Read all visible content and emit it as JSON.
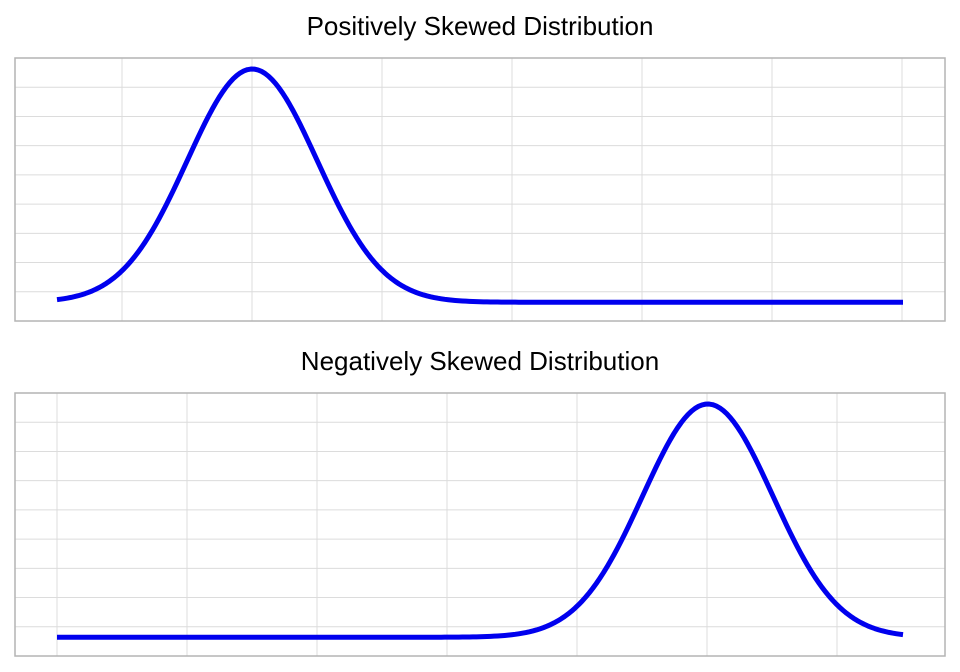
{
  "chart_data": [
    {
      "type": "line",
      "title": "Positively Skewed Distribution",
      "xlabel": "",
      "ylabel": "",
      "grid": true,
      "line_color": "#0000ee",
      "grid_color": "#dcdcdc",
      "border_color": "#b4b4b4",
      "x_range": [
        0,
        13
      ],
      "y_range": [
        0,
        1
      ],
      "series": [
        {
          "peak_x": 3,
          "spread": 1,
          "baseline": 0.02,
          "x": [
            0,
            0.5,
            1,
            1.5,
            2,
            2.5,
            3,
            3.5,
            4,
            4.5,
            5,
            5.5,
            6,
            6.5,
            7,
            8,
            9,
            10,
            11,
            12,
            13
          ],
          "y": [
            0.02,
            0.05,
            0.15,
            0.35,
            0.62,
            0.88,
            1.0,
            0.88,
            0.62,
            0.35,
            0.15,
            0.06,
            0.03,
            0.02,
            0.02,
            0.02,
            0.02,
            0.02,
            0.02,
            0.02,
            0.02
          ]
        }
      ]
    },
    {
      "type": "line",
      "title": "Negatively Skewed Distribution",
      "xlabel": "",
      "ylabel": "",
      "grid": true,
      "line_color": "#0000ee",
      "grid_color": "#dcdcdc",
      "border_color": "#b4b4b4",
      "x_range": [
        0,
        13
      ],
      "y_range": [
        0,
        1
      ],
      "series": [
        {
          "peak_x": 10,
          "spread": 1,
          "baseline": 0.02,
          "x": [
            0,
            1,
            2,
            3,
            4,
            5,
            6,
            6.5,
            7,
            7.5,
            8,
            8.5,
            9,
            9.5,
            10,
            10.5,
            11,
            11.5,
            12,
            12.5,
            13
          ],
          "y": [
            0.02,
            0.02,
            0.02,
            0.02,
            0.02,
            0.02,
            0.02,
            0.03,
            0.06,
            0.15,
            0.35,
            0.62,
            0.88,
            0.98,
            1.0,
            0.88,
            0.62,
            0.35,
            0.15,
            0.05,
            0.02
          ]
        }
      ]
    }
  ]
}
